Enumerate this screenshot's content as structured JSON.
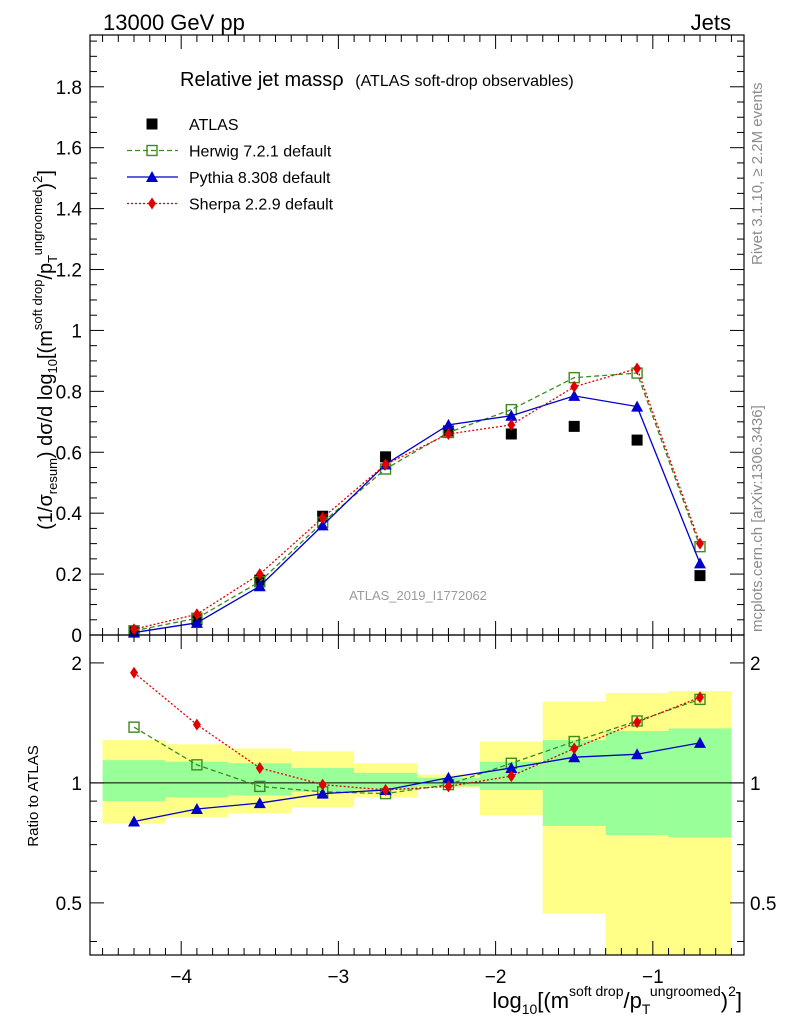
{
  "header": {
    "left": "13000 GeV pp",
    "right": "Jets",
    "title": "Relative jet mass",
    "title_symbol": "ρ",
    "subtitle": "(ATLAS soft-drop observables)",
    "watermark": "ATLAS_2019_I1772062",
    "side_top": "Rivet 3.1.10, ≥ 2.2M events",
    "side_bottom": "mcplots.cern.ch [arXiv:1306.3436]"
  },
  "chart_data": [
    {
      "type": "scatter",
      "panel": "main",
      "ylim": [
        0,
        1.97
      ],
      "xlim": [
        -4.58,
        -0.42
      ],
      "yticks": [
        {
          "v": 0,
          "label": "0"
        },
        {
          "v": 0.2,
          "label": "0.2"
        },
        {
          "v": 0.4,
          "label": "0.4"
        },
        {
          "v": 0.6,
          "label": "0.6"
        },
        {
          "v": 0.8,
          "label": "0.8"
        },
        {
          "v": 1.0,
          "label": "1"
        },
        {
          "v": 1.2,
          "label": "1.2"
        },
        {
          "v": 1.4,
          "label": "1.4"
        },
        {
          "v": 1.6,
          "label": "1.6"
        },
        {
          "v": 1.8,
          "label": "1.8"
        }
      ],
      "ylabel": {
        "pre": "(1/σ",
        "sub1": "resum",
        "mid": ") dσ/d log",
        "sub2": "10",
        "post1": "[(m",
        "sup1": "soft drop",
        "post2": "/p",
        "sub3": "T",
        "sup2": "ungroomed",
        "post3": ")",
        "sup3": "2",
        "post4": "]"
      },
      "x": [
        -4.3,
        -3.9,
        -3.5,
        -3.1,
        -2.7,
        -2.3,
        -1.9,
        -1.5,
        -1.1,
        -0.7
      ],
      "series": [
        {
          "name": "ATLAS",
          "values": [
            0.01,
            0.05,
            0.18,
            0.39,
            0.585,
            0.67,
            0.66,
            0.685,
            0.64,
            0.195
          ]
        },
        {
          "name": "Herwig 7.2.1 default",
          "values": [
            0.014,
            0.055,
            0.175,
            0.37,
            0.545,
            0.665,
            0.74,
            0.845,
            0.86,
            0.29
          ]
        },
        {
          "name": "Pythia 8.308 default",
          "values": [
            0.008,
            0.04,
            0.16,
            0.36,
            0.56,
            0.69,
            0.72,
            0.785,
            0.75,
            0.235
          ]
        },
        {
          "name": "Sherpa 2.2.9 default",
          "values": [
            0.019,
            0.068,
            0.2,
            0.385,
            0.56,
            0.66,
            0.69,
            0.815,
            0.875,
            0.3
          ]
        }
      ]
    },
    {
      "type": "line",
      "panel": "ratio",
      "ylabel": "Ratio to ATLAS",
      "yscale": "log",
      "ylim": [
        0.37,
        2.35
      ],
      "yticks": [
        {
          "v": 0.5,
          "label": "0.5"
        },
        {
          "v": 1,
          "label": "1"
        },
        {
          "v": 2,
          "label": "2"
        }
      ],
      "xlim": [
        -4.58,
        -0.42
      ],
      "xticks": [
        {
          "v": -4,
          "label": "−4"
        },
        {
          "v": -3,
          "label": "−3"
        },
        {
          "v": -2,
          "label": "−2"
        },
        {
          "v": -1,
          "label": "−1"
        }
      ],
      "xlabel": {
        "pre": "log",
        "sub1": "10",
        "post1": "[(m",
        "sup1": "soft drop",
        "post2": "/p",
        "sub2": "T",
        "sup2": "ungroomed",
        "post3": ")",
        "sup3": "2",
        "post4": "]"
      },
      "x": [
        -4.3,
        -3.9,
        -3.5,
        -3.1,
        -2.7,
        -2.3,
        -1.9,
        -1.5,
        -1.1,
        -0.7
      ],
      "series": [
        {
          "name": "Herwig 7.2.1 default",
          "values": [
            1.38,
            1.11,
            0.98,
            0.95,
            0.94,
            0.99,
            1.12,
            1.27,
            1.43,
            1.62
          ]
        },
        {
          "name": "Pythia 8.308 default",
          "values": [
            0.8,
            0.86,
            0.89,
            0.94,
            0.96,
            1.03,
            1.09,
            1.16,
            1.18,
            1.26
          ]
        },
        {
          "name": "Sherpa 2.2.9 default",
          "values": [
            1.89,
            1.4,
            1.09,
            0.99,
            0.96,
            0.98,
            1.04,
            1.22,
            1.42,
            1.64
          ]
        }
      ],
      "bands": {
        "edges": [
          -4.5,
          -4.1,
          -3.7,
          -3.3,
          -2.9,
          -2.5,
          -2.1,
          -1.7,
          -1.3,
          -0.9,
          -0.5
        ],
        "inner_lo": [
          0.9,
          0.92,
          0.93,
          0.95,
          0.96,
          0.98,
          0.96,
          0.78,
          0.74,
          0.73
        ],
        "inner_hi": [
          1.14,
          1.13,
          1.12,
          1.09,
          1.06,
          1.03,
          1.13,
          1.28,
          1.35,
          1.37
        ],
        "outer_lo": [
          0.79,
          0.82,
          0.84,
          0.87,
          0.92,
          0.97,
          0.83,
          0.47,
          0.3,
          0.3
        ],
        "outer_hi": [
          1.28,
          1.25,
          1.22,
          1.2,
          1.12,
          1.05,
          1.27,
          1.6,
          1.68,
          1.7
        ]
      }
    }
  ],
  "colors": {
    "atlas": "#000000",
    "herwig": "#3d8a1f",
    "pythia": "#0000cc",
    "sherpa": "#e00000",
    "band_inner": "#99ff99",
    "band_outer": "#ffff88",
    "watermark": "#9a9a9a"
  }
}
